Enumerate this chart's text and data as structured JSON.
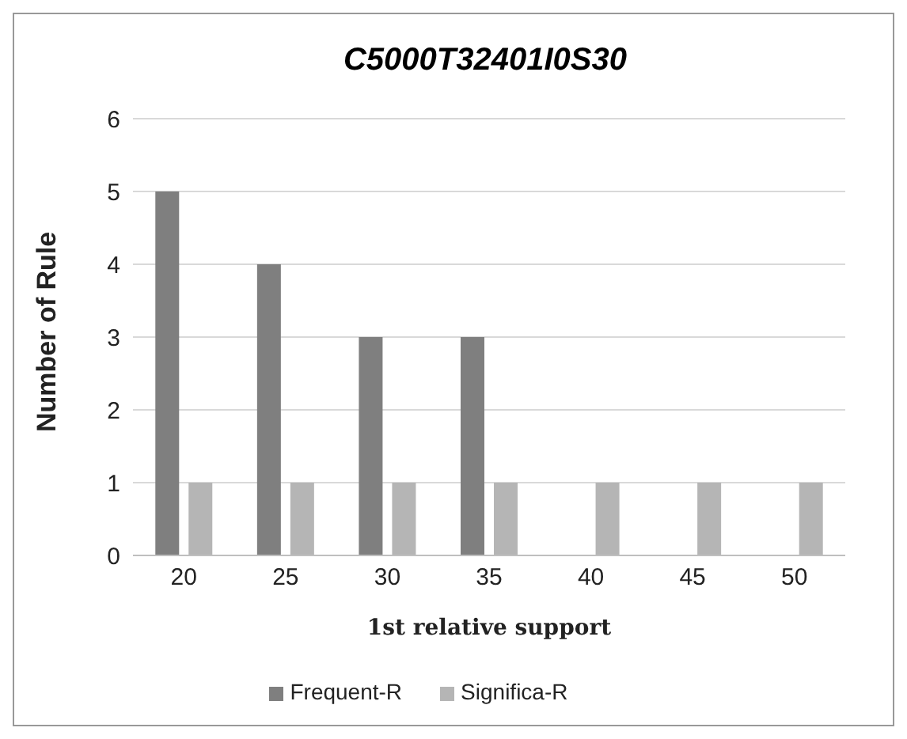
{
  "chart_data": {
    "type": "bar",
    "title": "C5000T32401I0S30",
    "xlabel": "1st relative support",
    "ylabel": "Number of Rule",
    "categories": [
      "20",
      "25",
      "30",
      "35",
      "40",
      "45",
      "50"
    ],
    "series": [
      {
        "name": "Frequent-R",
        "color": "#7f7f7f",
        "values": [
          5,
          4,
          3,
          3,
          0,
          0,
          0
        ]
      },
      {
        "name": "Significa-R",
        "color": "#b5b5b5",
        "values": [
          1,
          1,
          1,
          1,
          1,
          1,
          1
        ]
      }
    ],
    "ylim": [
      0,
      6
    ],
    "yticks": [
      0,
      1,
      2,
      3,
      4,
      5,
      6
    ],
    "grid": "y",
    "legend": "bottom"
  }
}
